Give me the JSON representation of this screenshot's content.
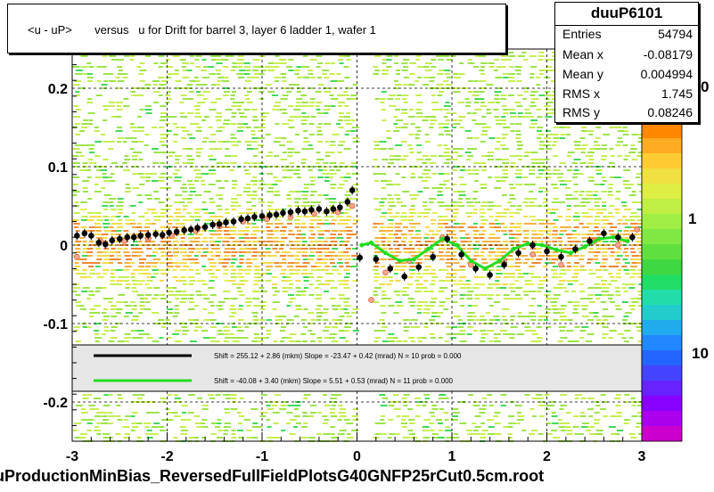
{
  "plot": {
    "title": "<u - uP>       versus   u for Drift for barrel 3, layer 6 ladder 1, wafer 1",
    "file_name": "uProductionMinBias_ReversedFullFieldPlotsG40GNFP25rCut0.5cm.root"
  },
  "stats": {
    "name": "duuP6101",
    "rows": [
      {
        "label": "Entries",
        "value": "54794"
      },
      {
        "label": "Mean x",
        "value": "-0.08179"
      },
      {
        "label": "Mean y",
        "value": "0.004994"
      },
      {
        "label": "RMS x",
        "value": "1.745"
      },
      {
        "label": "RMS y",
        "value": "0.08246"
      }
    ]
  },
  "colors": {
    "black_series": "#000000",
    "green_series": "#22dd22",
    "legend_background": "#e6e6e6"
  },
  "chart_data": {
    "type": "scatter",
    "xlim": [
      -3,
      3
    ],
    "ylim": [
      -0.25,
      0.25
    ],
    "x_ticks": [
      "-3",
      "-2",
      "-1",
      "0",
      "1",
      "2",
      "3"
    ],
    "y_ticks": [
      "-0.2",
      "-0.1",
      "0",
      "0.1",
      "0.2"
    ],
    "grid": true,
    "colorbar_labels": [
      "1",
      "10"
    ],
    "colorbar_partial_label": "0",
    "legend": [
      {
        "color": "#000000",
        "text": "Shift =   255.12 + 2.86 (mkm) Slope =    -23.47 + 0.42 (mrad)  N = 10 prob = 0.000"
      },
      {
        "color": "#22dd22",
        "text": "Shift =   -40.08 + 3.40 (mkm) Slope =      5.51 + 0.53 (mrad)  N = 11 prob = 0.000"
      }
    ],
    "series": [
      {
        "color": "black",
        "x": [
          -2.95,
          -2.87,
          -2.8,
          -2.72,
          -2.65,
          -2.58,
          -2.5,
          -2.42,
          -2.35,
          -2.28,
          -2.2,
          -2.12,
          -2.05,
          -1.98,
          -1.9,
          -1.82,
          -1.75,
          -1.68,
          -1.6,
          -1.52,
          -1.45,
          -1.38,
          -1.3,
          -1.22,
          -1.15,
          -1.08,
          -1.0,
          -0.92,
          -0.85,
          -0.78,
          -0.7,
          -0.62,
          -0.55,
          -0.48,
          -0.4,
          -0.32,
          -0.25,
          -0.18,
          -0.1,
          -0.05,
          0.03,
          0.2,
          0.35,
          0.5,
          0.65,
          0.8,
          0.95,
          1.1,
          1.25,
          1.4,
          1.55,
          1.7,
          1.85,
          2.0,
          2.15,
          2.3,
          2.45,
          2.6,
          2.75,
          2.9
        ],
        "y": [
          0.012,
          0.015,
          0.012,
          0.003,
          0.001,
          0.006,
          0.008,
          0.01,
          0.01,
          0.012,
          0.013,
          0.014,
          0.013,
          0.016,
          0.017,
          0.019,
          0.02,
          0.022,
          0.023,
          0.026,
          0.027,
          0.029,
          0.03,
          0.033,
          0.034,
          0.036,
          0.037,
          0.038,
          0.039,
          0.041,
          0.042,
          0.044,
          0.043,
          0.045,
          0.046,
          0.043,
          0.046,
          0.048,
          0.055,
          0.07,
          -0.016,
          -0.018,
          -0.03,
          -0.04,
          -0.028,
          -0.015,
          0.008,
          -0.012,
          -0.03,
          -0.038,
          -0.025,
          -0.01,
          0.0,
          -0.008,
          -0.015,
          -0.005,
          0.005,
          0.015,
          0.01,
          0.01
        ]
      },
      {
        "color": "green",
        "x": [
          0.05,
          0.15,
          0.3,
          0.45,
          0.6,
          0.75,
          0.9,
          1.05,
          1.2,
          1.35,
          1.5,
          1.65,
          1.8,
          1.95,
          2.1,
          2.25,
          2.4,
          2.55,
          2.7,
          2.85
        ],
        "y": [
          0.0,
          0.003,
          -0.01,
          -0.02,
          -0.018,
          -0.005,
          0.008,
          0.0,
          -0.02,
          -0.03,
          -0.02,
          -0.005,
          0.002,
          0.0,
          -0.006,
          -0.01,
          -0.002,
          0.008,
          0.01,
          0.005
        ]
      },
      {
        "color": "salmon",
        "x": [
          -2.95,
          -2.7,
          -2.45,
          -2.2,
          -1.95,
          -1.7,
          -1.45,
          -1.2,
          -0.95,
          -0.7,
          -0.45,
          -0.2,
          -0.05,
          0.15,
          0.3,
          0.55,
          0.9,
          1.2,
          1.55,
          1.85,
          2.15,
          2.5,
          2.75,
          2.95
        ],
        "y": [
          -0.015,
          0.005,
          0.005,
          0.008,
          0.012,
          0.018,
          0.024,
          0.03,
          0.033,
          0.036,
          0.04,
          0.042,
          0.05,
          -0.07,
          -0.035,
          -0.02,
          0.01,
          -0.025,
          -0.02,
          -0.012,
          -0.025,
          0.005,
          0.0,
          0.02
        ]
      }
    ]
  }
}
